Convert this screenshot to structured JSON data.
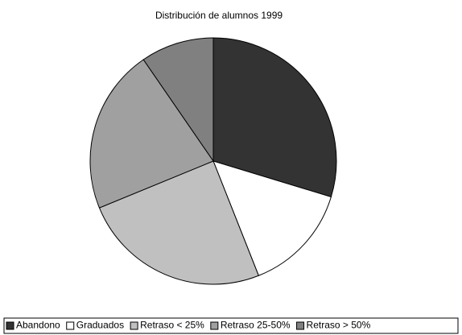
{
  "chart_data": {
    "type": "pie",
    "title": "Distribución de alumnos 1999",
    "categories": [
      "Abandono",
      "Graduados",
      "Retraso < 25%",
      "Retraso 25-50%",
      "Retraso > 50%"
    ],
    "values": [
      29.7,
      14.3,
      24.8,
      21.6,
      9.6
    ],
    "colors": [
      "#333333",
      "#ffffff",
      "#c0c0c0",
      "#a0a0a0",
      "#808080"
    ],
    "legend": "bottom"
  }
}
